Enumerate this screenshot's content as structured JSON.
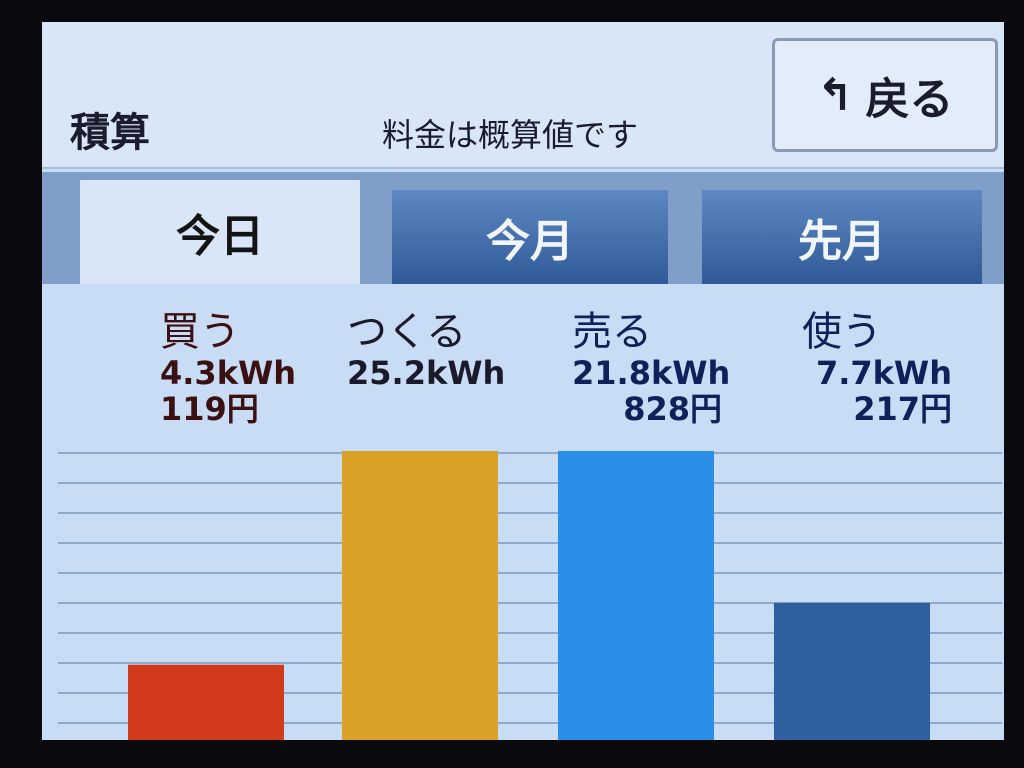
{
  "header": {
    "title": "積算",
    "note": "料金は概算値です",
    "back_label": "戻る",
    "back_icon": "return-arrow-icon"
  },
  "tabs": [
    {
      "label": "今日",
      "active": true
    },
    {
      "label": "今月",
      "active": false
    },
    {
      "label": "先月",
      "active": false
    }
  ],
  "colors": {
    "buy": "#d23a1c",
    "generate": "#d9a227",
    "sell": "#2a8ee6",
    "use": "#2f5f9e"
  },
  "chart_data": {
    "type": "bar",
    "categories": [
      "買う",
      "つくる",
      "売る",
      "使う"
    ],
    "series": [
      {
        "values": [
          4.3,
          25.2,
          21.8,
          7.7
        ]
      }
    ],
    "unit": "kWh",
    "items": [
      {
        "label": "買う",
        "energy": "4.3kWh",
        "cost": "119円",
        "color": "#d23a1c",
        "text_color": "#3a1010"
      },
      {
        "label": "つくる",
        "energy": "25.2kWh",
        "cost": "",
        "color": "#d9a227",
        "text_color": "#1a1a2a"
      },
      {
        "label": "売る",
        "energy": "21.8kWh",
        "cost": "828円",
        "color": "#2a8ee6",
        "text_color": "#10205a"
      },
      {
        "label": "使う",
        "energy": "7.7kWh",
        "cost": "217円",
        "color": "#2f5f9e",
        "text_color": "#10205a"
      }
    ],
    "grid": true
  }
}
